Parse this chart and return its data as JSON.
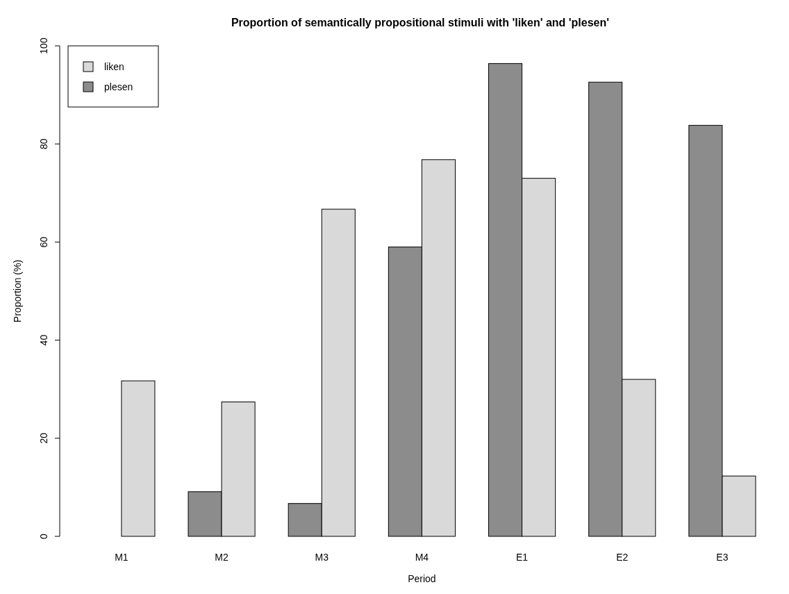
{
  "chart_data": {
    "type": "bar",
    "title": "Proportion of semantically propositional stimuli with 'liken' and 'plesen'",
    "xlabel": "Period",
    "ylabel": "Proportion (%)",
    "categories": [
      "M1",
      "M2",
      "M3",
      "M4",
      "E1",
      "E2",
      "E3"
    ],
    "series": [
      {
        "name": "plesen",
        "color": "#8c8c8c",
        "values": [
          0,
          9.1,
          6.7,
          59.0,
          96.4,
          92.6,
          83.8
        ]
      },
      {
        "name": "liken",
        "color": "#d9d9d9",
        "values": [
          31.7,
          27.4,
          66.7,
          76.8,
          73.0,
          32.0,
          12.3
        ]
      }
    ],
    "ylim": [
      0,
      100
    ],
    "yticks": [
      0,
      20,
      40,
      60,
      80,
      100
    ],
    "legend": "top left"
  }
}
